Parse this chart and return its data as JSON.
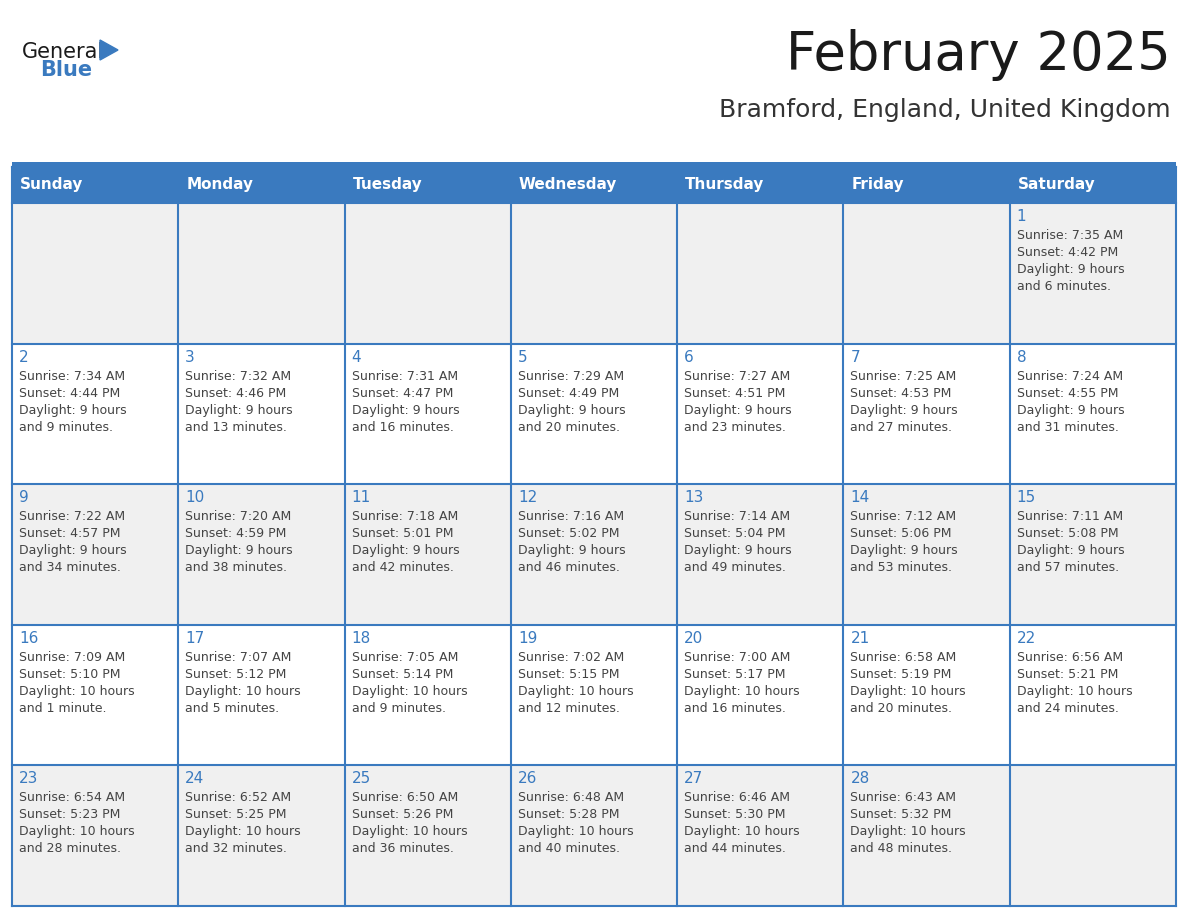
{
  "title": "February 2025",
  "subtitle": "Bramford, England, United Kingdom",
  "days_of_week": [
    "Sunday",
    "Monday",
    "Tuesday",
    "Wednesday",
    "Thursday",
    "Friday",
    "Saturday"
  ],
  "header_bg": "#3a7abf",
  "header_text": "#ffffff",
  "cell_bg_odd": "#f0f0f0",
  "cell_bg_even": "#ffffff",
  "border_color": "#3a7abf",
  "day_num_color": "#3a7abf",
  "text_color": "#444444",
  "title_color": "#1a1a1a",
  "subtitle_color": "#333333",
  "logo_general_color": "#1a1a1a",
  "logo_blue_color": "#3a7abf",
  "calendar": [
    [
      null,
      null,
      null,
      null,
      null,
      null,
      1
    ],
    [
      2,
      3,
      4,
      5,
      6,
      7,
      8
    ],
    [
      9,
      10,
      11,
      12,
      13,
      14,
      15
    ],
    [
      16,
      17,
      18,
      19,
      20,
      21,
      22
    ],
    [
      23,
      24,
      25,
      26,
      27,
      28,
      null
    ]
  ],
  "sun_data": {
    "1": {
      "rise": "7:35 AM",
      "set": "4:42 PM",
      "day": "9 hours and 6 minutes"
    },
    "2": {
      "rise": "7:34 AM",
      "set": "4:44 PM",
      "day": "9 hours and 9 minutes"
    },
    "3": {
      "rise": "7:32 AM",
      "set": "4:46 PM",
      "day": "9 hours and 13 minutes"
    },
    "4": {
      "rise": "7:31 AM",
      "set": "4:47 PM",
      "day": "9 hours and 16 minutes"
    },
    "5": {
      "rise": "7:29 AM",
      "set": "4:49 PM",
      "day": "9 hours and 20 minutes"
    },
    "6": {
      "rise": "7:27 AM",
      "set": "4:51 PM",
      "day": "9 hours and 23 minutes"
    },
    "7": {
      "rise": "7:25 AM",
      "set": "4:53 PM",
      "day": "9 hours and 27 minutes"
    },
    "8": {
      "rise": "7:24 AM",
      "set": "4:55 PM",
      "day": "9 hours and 31 minutes"
    },
    "9": {
      "rise": "7:22 AM",
      "set": "4:57 PM",
      "day": "9 hours and 34 minutes"
    },
    "10": {
      "rise": "7:20 AM",
      "set": "4:59 PM",
      "day": "9 hours and 38 minutes"
    },
    "11": {
      "rise": "7:18 AM",
      "set": "5:01 PM",
      "day": "9 hours and 42 minutes"
    },
    "12": {
      "rise": "7:16 AM",
      "set": "5:02 PM",
      "day": "9 hours and 46 minutes"
    },
    "13": {
      "rise": "7:14 AM",
      "set": "5:04 PM",
      "day": "9 hours and 49 minutes"
    },
    "14": {
      "rise": "7:12 AM",
      "set": "5:06 PM",
      "day": "9 hours and 53 minutes"
    },
    "15": {
      "rise": "7:11 AM",
      "set": "5:08 PM",
      "day": "9 hours and 57 minutes"
    },
    "16": {
      "rise": "7:09 AM",
      "set": "5:10 PM",
      "day": "10 hours and 1 minute"
    },
    "17": {
      "rise": "7:07 AM",
      "set": "5:12 PM",
      "day": "10 hours and 5 minutes"
    },
    "18": {
      "rise": "7:05 AM",
      "set": "5:14 PM",
      "day": "10 hours and 9 minutes"
    },
    "19": {
      "rise": "7:02 AM",
      "set": "5:15 PM",
      "day": "10 hours and 12 minutes"
    },
    "20": {
      "rise": "7:00 AM",
      "set": "5:17 PM",
      "day": "10 hours and 16 minutes"
    },
    "21": {
      "rise": "6:58 AM",
      "set": "5:19 PM",
      "day": "10 hours and 20 minutes"
    },
    "22": {
      "rise": "6:56 AM",
      "set": "5:21 PM",
      "day": "10 hours and 24 minutes"
    },
    "23": {
      "rise": "6:54 AM",
      "set": "5:23 PM",
      "day": "10 hours and 28 minutes"
    },
    "24": {
      "rise": "6:52 AM",
      "set": "5:25 PM",
      "day": "10 hours and 32 minutes"
    },
    "25": {
      "rise": "6:50 AM",
      "set": "5:26 PM",
      "day": "10 hours and 36 minutes"
    },
    "26": {
      "rise": "6:48 AM",
      "set": "5:28 PM",
      "day": "10 hours and 40 minutes"
    },
    "27": {
      "rise": "6:46 AM",
      "set": "5:30 PM",
      "day": "10 hours and 44 minutes"
    },
    "28": {
      "rise": "6:43 AM",
      "set": "5:32 PM",
      "day": "10 hours and 48 minutes"
    }
  },
  "fig_width": 11.88,
  "fig_height": 9.18,
  "dpi": 100
}
